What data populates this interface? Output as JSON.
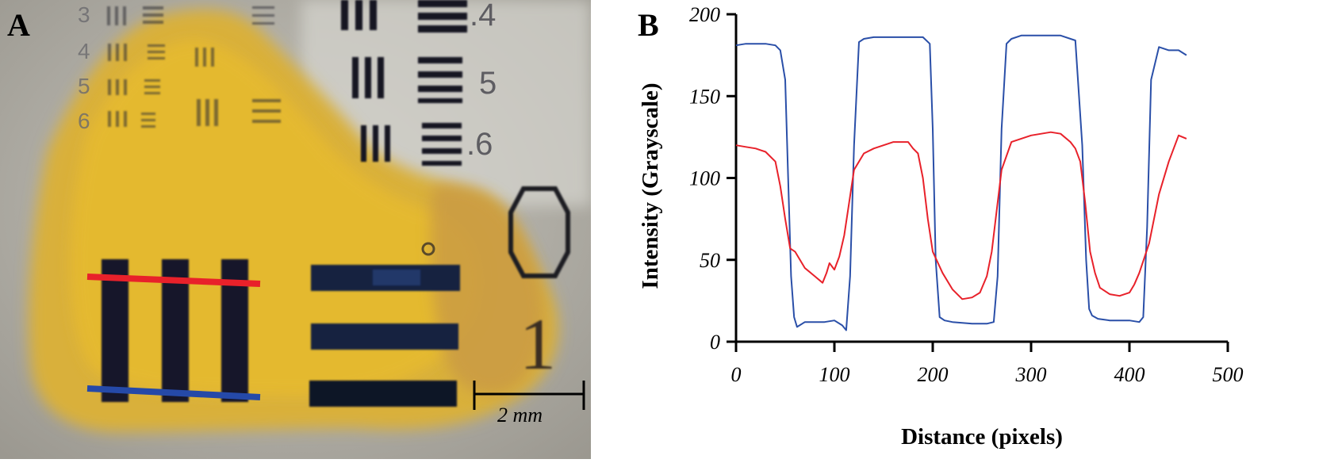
{
  "panels": {
    "a": {
      "letter": "A",
      "chart_labels": [
        "3",
        "4",
        "5",
        "6"
      ],
      "element_labels": [
        ".4",
        "5",
        ".6"
      ],
      "group_labels": [
        "0",
        "1"
      ],
      "scale_bar_label": "2 mm",
      "line_colors": {
        "red": "#e8212a",
        "blue": "#2549a8"
      }
    },
    "b": {
      "letter": "B"
    }
  },
  "chart_data": {
    "type": "line",
    "title": "",
    "xlabel": "Distance (pixels)",
    "ylabel": "Intensity (Grayscale)",
    "xlim": [
      0,
      500
    ],
    "ylim": [
      0,
      200
    ],
    "xticks": [
      0,
      100,
      200,
      300,
      400,
      500
    ],
    "yticks": [
      0,
      50,
      100,
      150,
      200
    ],
    "grid": false,
    "series": [
      {
        "color": "#2a4fa8",
        "x": [
          0,
          10,
          20,
          30,
          40,
          45,
          50,
          53,
          56,
          59,
          62,
          70,
          80,
          90,
          100,
          108,
          112,
          116,
          120,
          125,
          130,
          140,
          160,
          180,
          190,
          197,
          200,
          203,
          207,
          212,
          220,
          240,
          255,
          262,
          266,
          270,
          275,
          280,
          290,
          310,
          330,
          345,
          352,
          356,
          359,
          362,
          368,
          380,
          400,
          410,
          414,
          418,
          422,
          430,
          440,
          450,
          458
        ],
        "y": [
          181,
          182,
          182,
          182,
          181,
          178,
          160,
          100,
          40,
          15,
          9,
          12,
          12,
          12,
          13,
          10,
          7,
          40,
          120,
          183,
          185,
          186,
          186,
          186,
          186,
          182,
          130,
          50,
          15,
          13,
          12,
          11,
          11,
          12,
          40,
          130,
          182,
          185,
          187,
          187,
          187,
          184,
          120,
          50,
          20,
          16,
          14,
          13,
          13,
          12,
          15,
          70,
          160,
          180,
          178,
          178,
          175
        ]
      },
      {
        "color": "#e8212a",
        "x": [
          0,
          10,
          20,
          25,
          30,
          40,
          45,
          50,
          55,
          60,
          70,
          80,
          88,
          92,
          95,
          100,
          105,
          110,
          115,
          120,
          130,
          140,
          160,
          175,
          180,
          185,
          190,
          195,
          200,
          210,
          220,
          230,
          240,
          248,
          255,
          260,
          265,
          270,
          280,
          300,
          320,
          330,
          340,
          345,
          350,
          355,
          360,
          365,
          370,
          380,
          390,
          400,
          405,
          410,
          420,
          430,
          440,
          450,
          458
        ],
        "y": [
          120,
          119,
          118,
          117,
          116,
          110,
          95,
          75,
          57,
          55,
          45,
          40,
          36,
          42,
          48,
          44,
          52,
          65,
          85,
          105,
          115,
          118,
          122,
          122,
          118,
          115,
          100,
          75,
          55,
          42,
          32,
          26,
          27,
          30,
          40,
          55,
          80,
          105,
          122,
          126,
          128,
          127,
          122,
          118,
          110,
          85,
          55,
          42,
          33,
          29,
          28,
          30,
          35,
          42,
          60,
          90,
          110,
          126,
          124
        ]
      }
    ]
  }
}
